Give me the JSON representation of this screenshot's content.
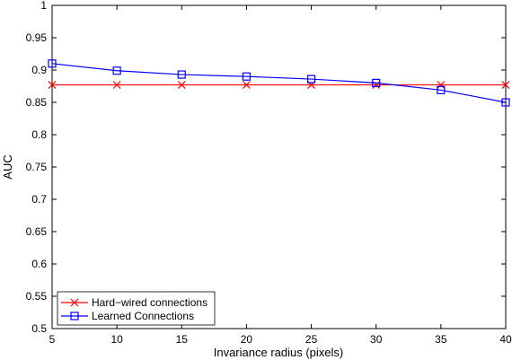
{
  "chart_data": {
    "type": "line",
    "title": "",
    "xlabel": "Invariance radius (pixels)",
    "ylabel": "AUC",
    "x": [
      5,
      10,
      15,
      20,
      25,
      30,
      35,
      40
    ],
    "xlim": [
      5,
      40
    ],
    "ylim": [
      0.5,
      1
    ],
    "xticks": [
      "5",
      "10",
      "15",
      "20",
      "25",
      "30",
      "35",
      "40"
    ],
    "yticks": [
      "0.5",
      "0.55",
      "0.6",
      "0.65",
      "0.7",
      "0.75",
      "0.8",
      "0.85",
      "0.9",
      "0.95",
      "1"
    ],
    "grid": false,
    "legend_position": "bottom-left",
    "series": [
      {
        "name": "Hard−wired connections",
        "color": "#ff0000",
        "marker": "x",
        "values": [
          0.877,
          0.877,
          0.877,
          0.877,
          0.877,
          0.877,
          0.877,
          0.877
        ]
      },
      {
        "name": "Learned Connections",
        "color": "#0000ff",
        "marker": "square",
        "values": [
          0.91,
          0.899,
          0.893,
          0.89,
          0.886,
          0.88,
          0.869,
          0.85
        ]
      }
    ]
  }
}
